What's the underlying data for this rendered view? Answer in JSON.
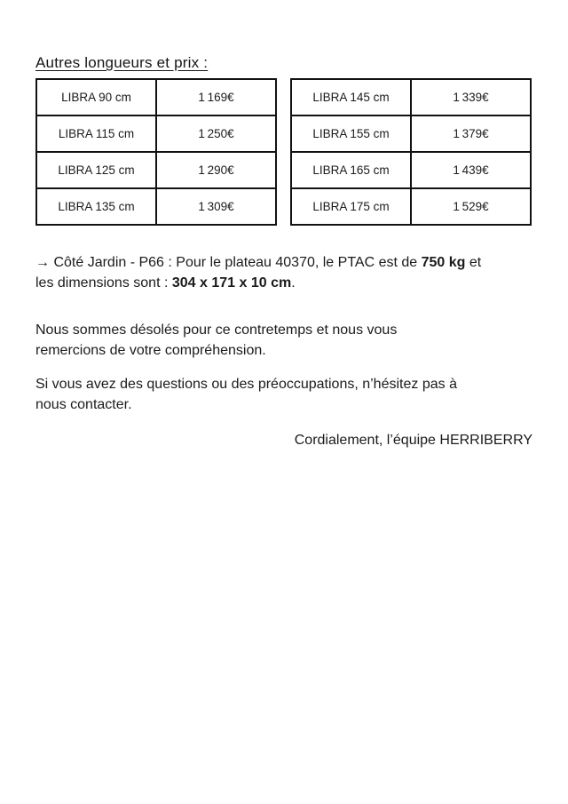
{
  "document": {
    "title": "Autres longueurs et prix :"
  },
  "price_tables": {
    "left": {
      "rows": [
        {
          "model": "LIBRA 90 cm",
          "price": "1 169€"
        },
        {
          "model": "LIBRA 115 cm",
          "price": "1 250€"
        },
        {
          "model": "LIBRA 125 cm",
          "price": "1 290€"
        },
        {
          "model": "LIBRA 135 cm",
          "price": "1 309€"
        }
      ]
    },
    "right": {
      "rows": [
        {
          "model": "LIBRA 145 cm",
          "price": "1 339€"
        },
        {
          "model": "LIBRA 155 cm",
          "price": "1 379€"
        },
        {
          "model": "LIBRA 165 cm",
          "price": "1 439€"
        },
        {
          "model": "LIBRA 175 cm",
          "price": "1 529€"
        }
      ]
    }
  },
  "paragraphs": {
    "info": {
      "lead": "→ Côté Jardin - P66 : Pour le plateau 40370, le PTAC est de ",
      "bold_ptac": "750 kg",
      "middle": " et\nles dimensions sont : ",
      "bold_dimensions": "304 x 171 x 10 cm",
      "tail": "."
    },
    "apology": "Nous sommes désolés pour ce contretemps et nous vous\nremercions de votre compréhension.",
    "contact": "Si vous avez des questions ou des préoccupations, n’hésitez pas à\nnous contacter.",
    "signature": "Cordialement, l’équipe HERRIBERRY"
  }
}
